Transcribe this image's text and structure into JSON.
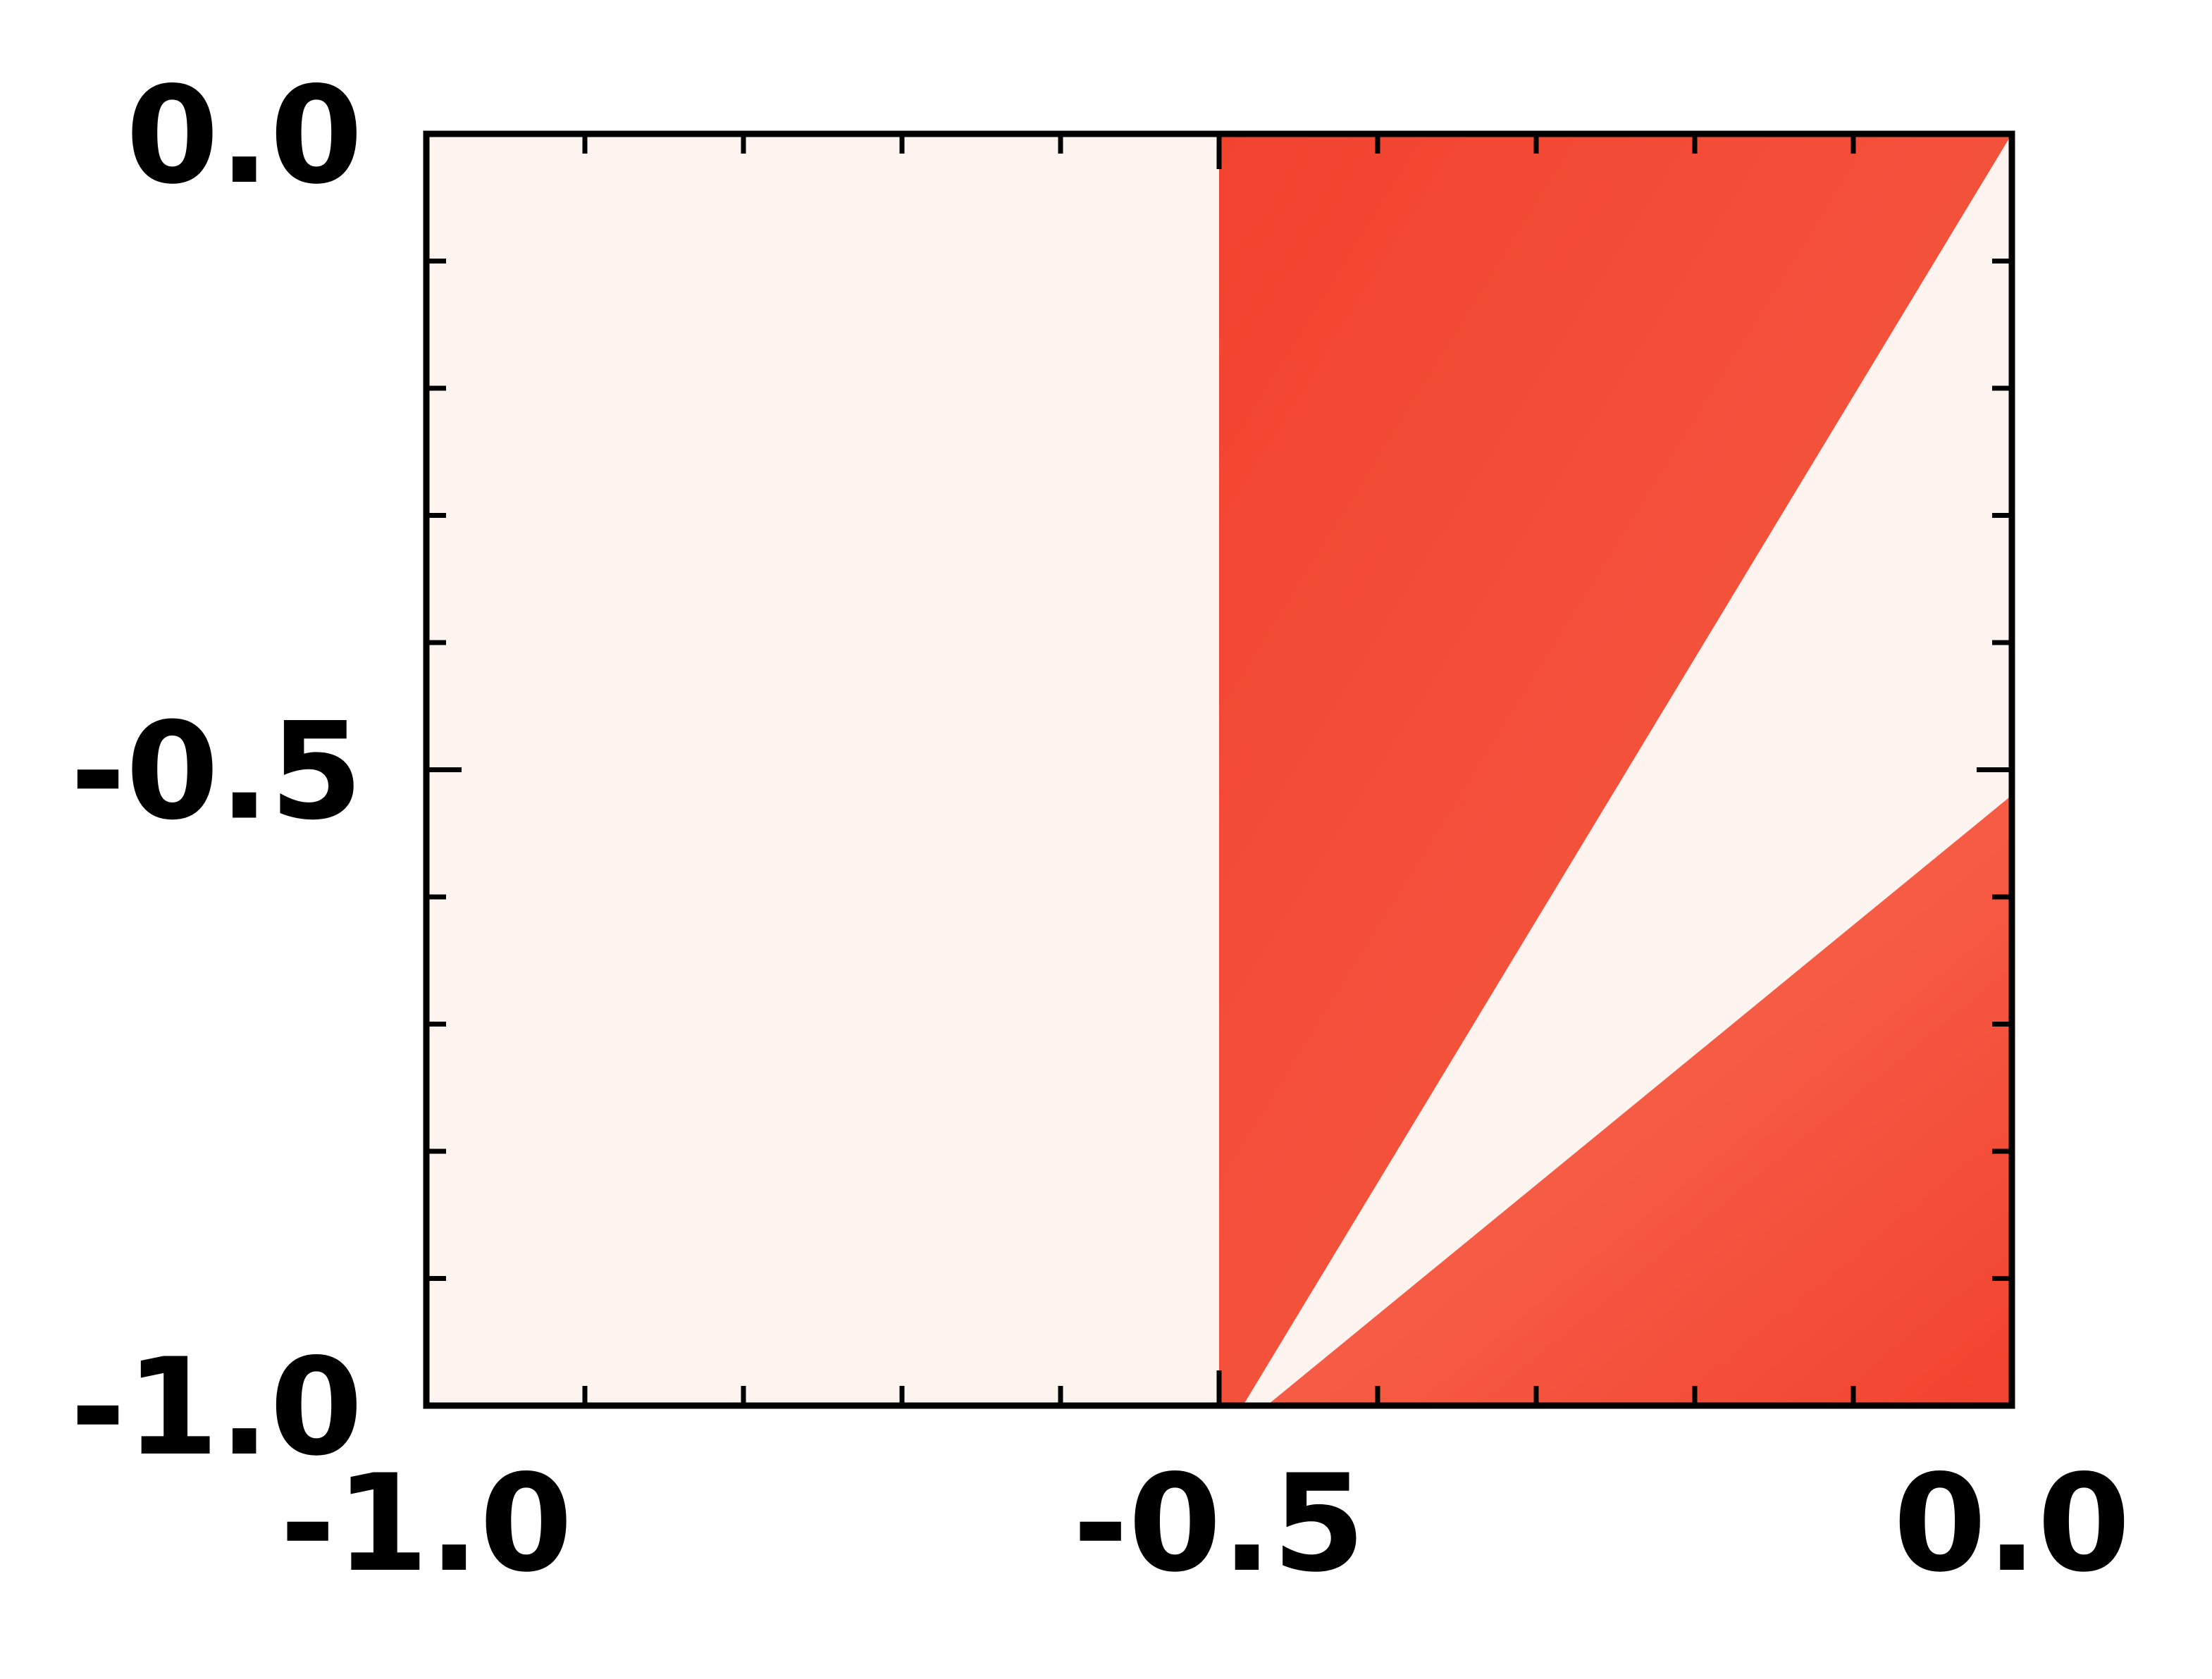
{
  "chart_data": {
    "type": "heatmap",
    "title": "",
    "xlabel": "",
    "ylabel": "",
    "xlim": [
      -1.0,
      0.0
    ],
    "ylim": [
      -1.0,
      0.0
    ],
    "grid": false,
    "x_ticks": [
      {
        "value": -1.0,
        "label": "-1.0"
      },
      {
        "value": -0.5,
        "label": "-0.5"
      },
      {
        "value": 0.0,
        "label": "0.0"
      }
    ],
    "y_ticks": [
      {
        "value": 0.0,
        "label": "0.0"
      },
      {
        "value": -0.5,
        "label": "-0.5"
      },
      {
        "value": -1.0,
        "label": "-1.0"
      }
    ],
    "minor_tick_step": 0.1,
    "colors": {
      "background": "#fdf4f0",
      "filled_dark": "#f2432f",
      "filled_light": "#f75f47",
      "axis": "#000000"
    },
    "regions": [
      {
        "name": "left-blank",
        "fill": "background",
        "polygon": [
          [
            -1.0,
            -1.0
          ],
          [
            -0.5,
            -1.0
          ],
          [
            -0.5,
            0.0
          ],
          [
            -1.0,
            0.0
          ]
        ]
      },
      {
        "name": "upper-wedge",
        "fill": "gradient",
        "polygon": [
          [
            -0.5,
            -1.0
          ],
          [
            -0.485,
            -1.0
          ],
          [
            0.0,
            0.0
          ],
          [
            -0.5,
            0.0
          ]
        ]
      },
      {
        "name": "lower-wedge",
        "fill": "gradient",
        "polygon": [
          [
            -0.47,
            -1.0
          ],
          [
            0.0,
            -1.0
          ],
          [
            0.0,
            -0.52
          ]
        ]
      }
    ]
  }
}
